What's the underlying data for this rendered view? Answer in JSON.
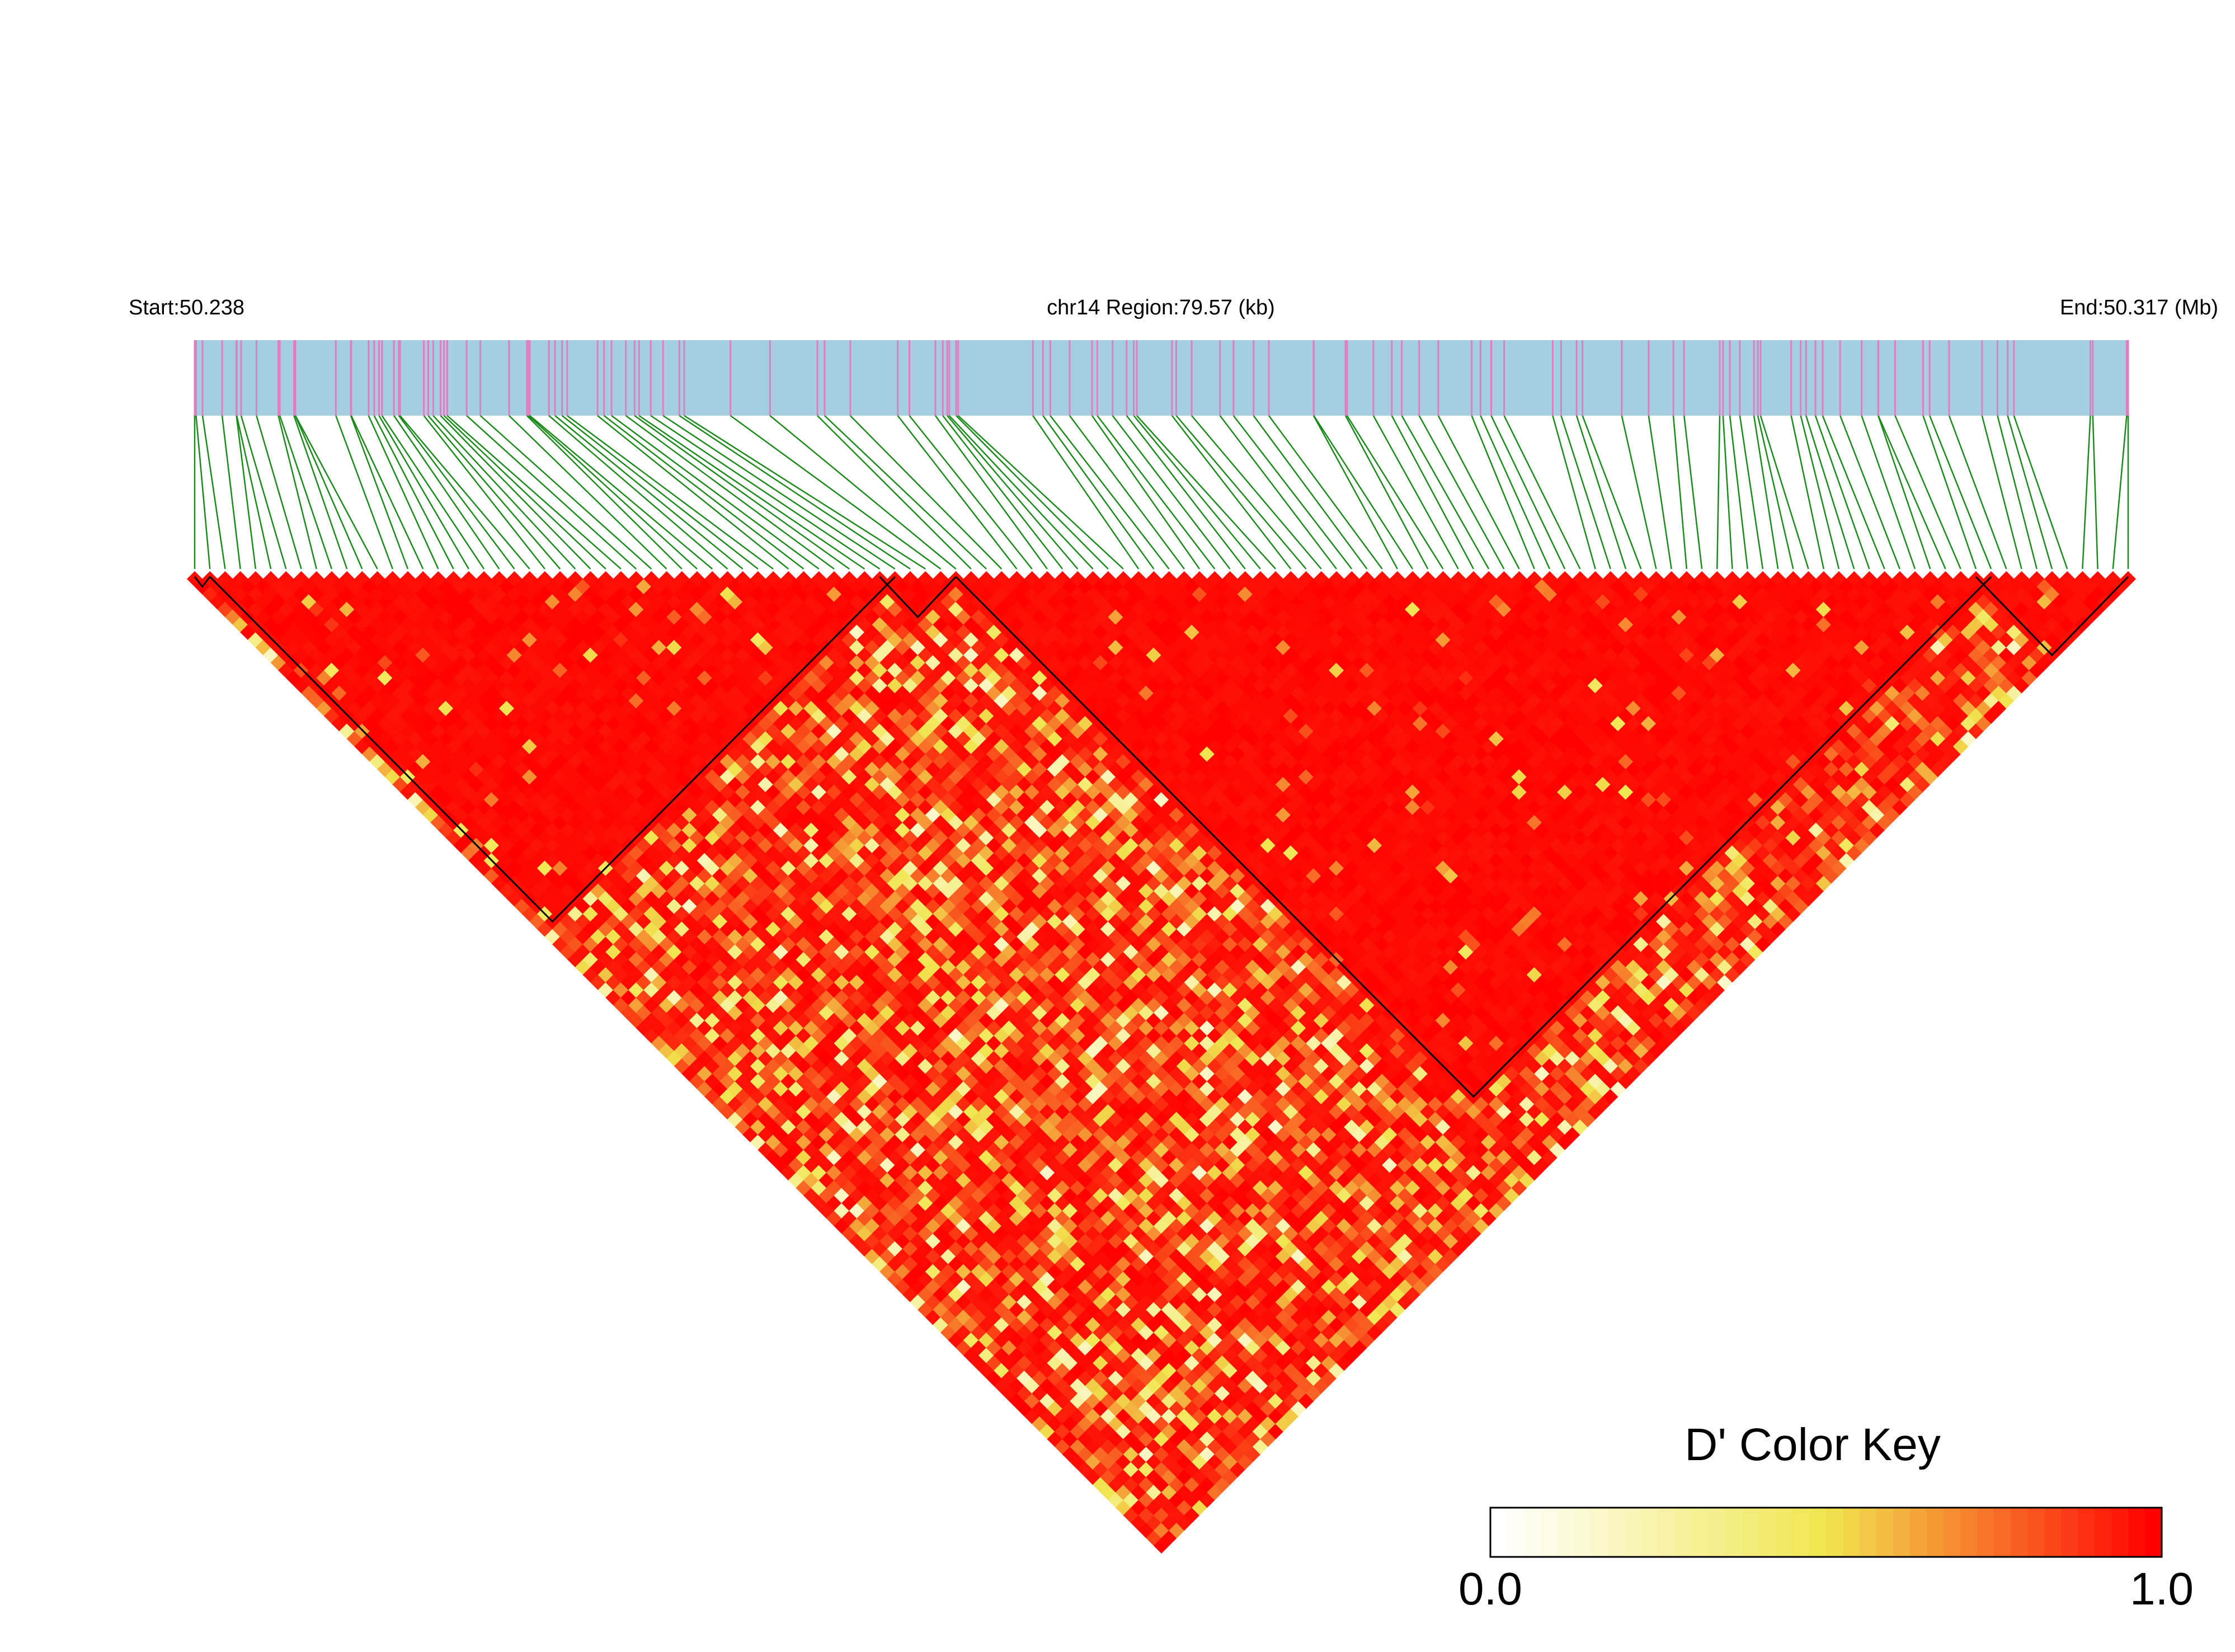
{
  "chart_data": {
    "type": "heatmap",
    "subtype": "linkage-disequilibrium-triangle",
    "start_label": "Start:50.238",
    "region_label": "chr14 Region:79.57 (kb)",
    "end_label": "End:50.317 (Mb)",
    "chromosome": "chr14",
    "region_start_mb": 50.238,
    "region_end_mb": 50.317,
    "region_length_kb": 79.57,
    "snp_count": 128,
    "ld_blocks_snp_index_ranges": [
      [
        0,
        1
      ],
      [
        1,
        46
      ],
      [
        45,
        50
      ],
      [
        50,
        118
      ],
      [
        117,
        127
      ]
    ],
    "color_key": {
      "title": "D' Color Key",
      "min_label": "0.0",
      "max_label": "1.0",
      "range": [
        0,
        1
      ],
      "colors": [
        "#ffffff",
        "#f0e650",
        "#ff0000"
      ]
    },
    "colors": {
      "track_fill": "#a6cee3",
      "snp_tick": "#e07fbf",
      "connector": "#1a8a1a",
      "block_outline": "#000000"
    }
  }
}
